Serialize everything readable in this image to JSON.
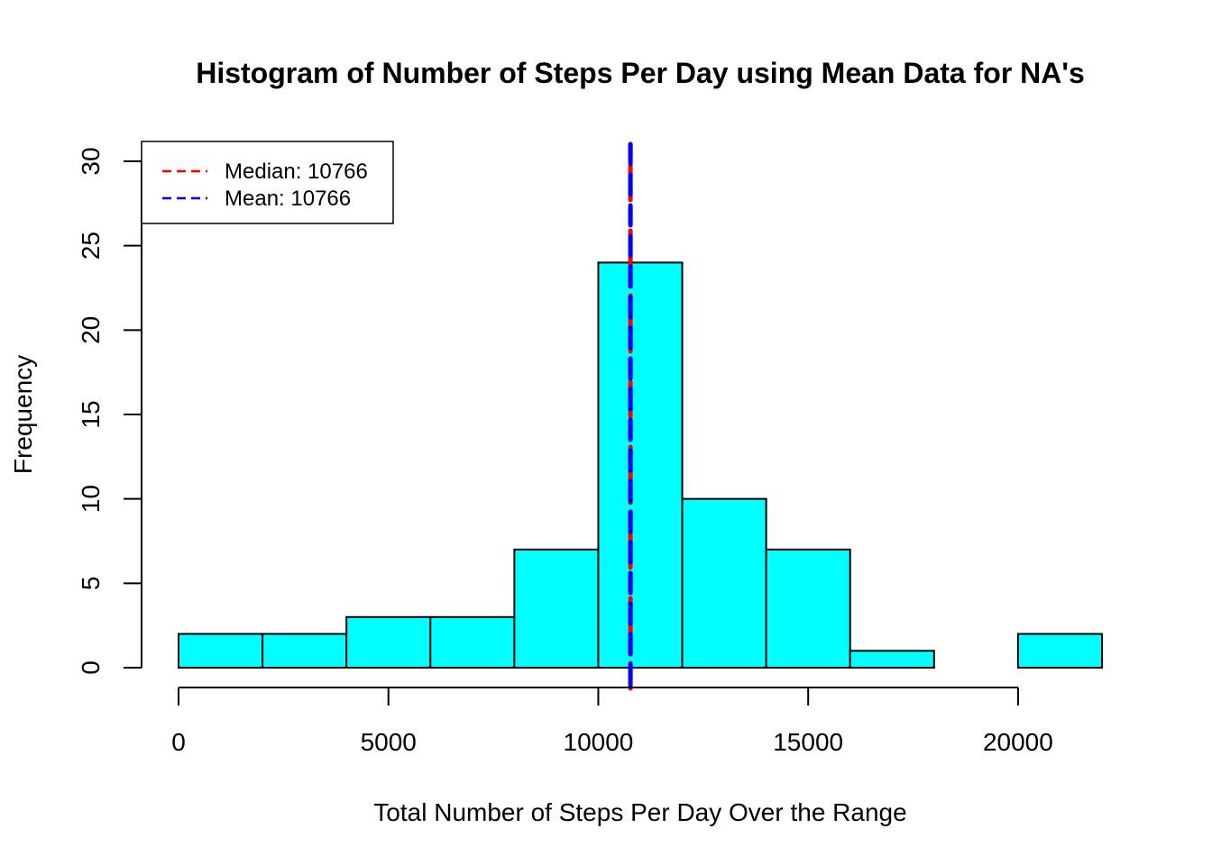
{
  "chart_data": {
    "type": "bar",
    "title": "Histogram of Number of Steps Per Day using Mean Data for NA's",
    "xlabel": "Total Number of Steps Per Day Over the Range",
    "ylabel": "Frequency",
    "bin_edges": [
      0,
      2000,
      4000,
      6000,
      8000,
      10000,
      12000,
      14000,
      16000,
      18000,
      20000,
      22000
    ],
    "values": [
      2,
      2,
      3,
      3,
      7,
      24,
      10,
      7,
      1,
      0,
      2
    ],
    "bar_color": "#00ffff",
    "xlim": [
      0,
      22000
    ],
    "ylim": [
      0,
      30
    ],
    "x_ticks": [
      0,
      5000,
      10000,
      15000,
      20000
    ],
    "x_tick_labels": [
      "0",
      "5000",
      "10000",
      "15000",
      "20000"
    ],
    "y_ticks": [
      0,
      5,
      10,
      15,
      20,
      25,
      30
    ],
    "y_tick_labels": [
      "0",
      "5",
      "10",
      "15",
      "20",
      "25",
      "30"
    ],
    "grid": false,
    "reference_lines": [
      {
        "name": "Median",
        "value": 10766,
        "color": "#ff0000"
      },
      {
        "name": "Mean",
        "value": 10766,
        "color": "#0000ff"
      }
    ],
    "legend": {
      "position": "top-left",
      "entries": [
        "Median:  10766",
        "Mean:  10766"
      ]
    }
  }
}
